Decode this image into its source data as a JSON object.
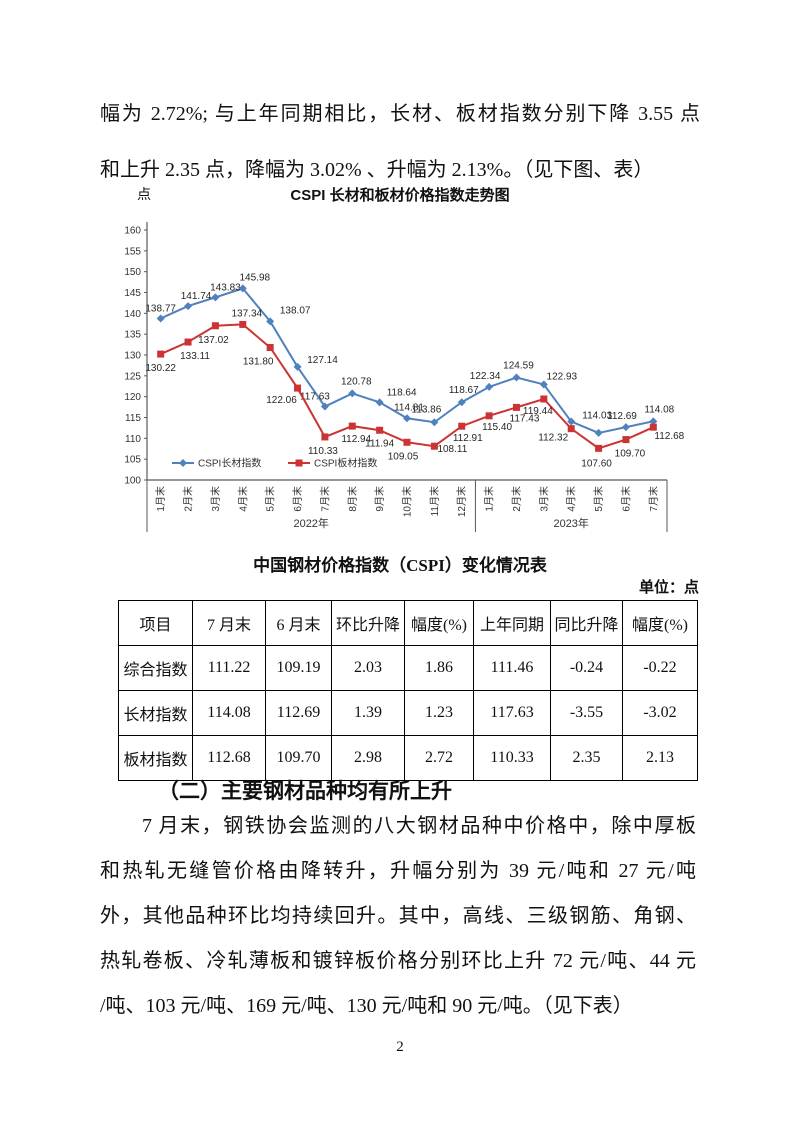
{
  "page": {
    "page_number": "2"
  },
  "intro": {
    "lines": [
      "幅为 2.72%; 与上年同期相比，长材、板材指数分别下降 3.55 点",
      "和上升 2.35 点，降幅为 3.02% 、升幅为 2.13%。（见下图、表）"
    ]
  },
  "chart_data": {
    "type": "line",
    "title": "CSPI 长材和板材价格指数走势图",
    "ylabel": "点",
    "ylim": [
      100,
      160
    ],
    "ytick_step": 5,
    "yticks": [
      100,
      105,
      110,
      115,
      120,
      125,
      130,
      135,
      140,
      145,
      150,
      155,
      160
    ],
    "grid": false,
    "legend_position": "bottom-inside",
    "categories": [
      "1月末",
      "2月末",
      "3月末",
      "4月末",
      "5月末",
      "6月末",
      "7月末",
      "8月末",
      "9月末",
      "10月末",
      "11月末",
      "12月末",
      "1月末",
      "2月末",
      "3月末",
      "4月末",
      "5月末",
      "6月末",
      "7月末"
    ],
    "groups": [
      {
        "label": "2022年",
        "span": 12
      },
      {
        "label": "2023年",
        "span": 7
      }
    ],
    "series": [
      {
        "name": "CSPI长材指数",
        "color": "#4F81BD",
        "marker": "diamond",
        "values": [
          138.77,
          141.74,
          143.83,
          145.98,
          138.07,
          127.14,
          117.63,
          120.78,
          118.64,
          114.81,
          113.86,
          118.67,
          122.34,
          124.59,
          122.93,
          114.03,
          111.3,
          112.69,
          114.08
        ],
        "labels": [
          "138.77",
          "141.74",
          "143.83",
          "145.98",
          "138.07",
          "127.14",
          "117.63",
          "120.78",
          "118.64",
          "114.81",
          "113.86",
          "118.67",
          "122.34",
          "124.59",
          "122.93",
          "114.03",
          null,
          "112.69",
          "114.08"
        ]
      },
      {
        "name": "CSPI板材指数",
        "color": "#CC3333",
        "marker": "square",
        "values": [
          130.22,
          133.11,
          137.02,
          137.34,
          131.8,
          122.06,
          110.33,
          112.94,
          111.94,
          109.05,
          108.11,
          112.91,
          115.4,
          117.43,
          119.44,
          112.32,
          107.6,
          109.7,
          112.68
        ],
        "labels": [
          "130.22",
          "133.11",
          "137.02",
          "137.34",
          "131.80",
          "122.06",
          "110.33",
          "112.94",
          "111.94",
          "109.05",
          "108.11",
          "112.91",
          "115.40",
          "117.43",
          "119.44",
          "112.32",
          "107.60",
          "109.70",
          "112.68"
        ]
      }
    ]
  },
  "table": {
    "title": "中国钢材价格指数（CSPI）变化情况表",
    "unit_note": "单位：点",
    "headers": [
      "项目",
      "7 月末",
      "6 月末",
      "环比升降",
      "幅度(%)",
      "上年同期",
      "同比升降",
      "幅度(%)"
    ],
    "rows": [
      [
        "综合指数",
        "111.22",
        "109.19",
        "2.03",
        "1.86",
        "111.46",
        "-0.24",
        "-0.22"
      ],
      [
        "长材指数",
        "114.08",
        "112.69",
        "1.39",
        "1.23",
        "117.63",
        "-3.55",
        "-3.02"
      ],
      [
        "板材指数",
        "112.68",
        "109.70",
        "2.98",
        "2.72",
        "110.33",
        "2.35",
        "2.13"
      ]
    ]
  },
  "section": {
    "heading": "（二）主要钢材品种均有所上升",
    "body_lines": [
      "7 月末，钢铁协会监测的八大钢材品种中价格中，除中厚板",
      "和热轧无缝管价格由降转升，升幅分别为 39 元/吨和 27 元/吨",
      "外，其他品种环比均持续回升。其中，高线、三级钢筋、角钢、",
      "热轧卷板、冷轧薄板和镀锌板价格分别环比上升 72 元/吨、44 元",
      "/吨、103 元/吨、169 元/吨、130 元/吨和 90 元/吨。（见下表）"
    ]
  }
}
